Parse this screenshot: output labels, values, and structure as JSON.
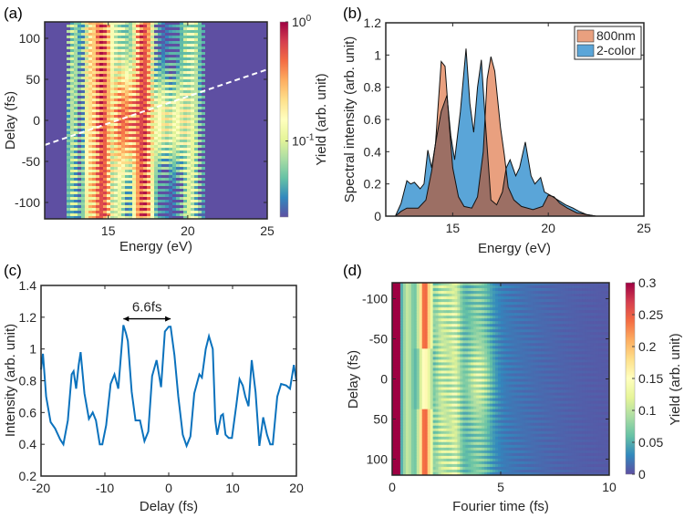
{
  "chart_data": [
    {
      "panel": "(a)",
      "type": "heatmap",
      "xlabel": "Energy (eV)",
      "ylabel": "Delay (fs)",
      "xlim": [
        11,
        25
      ],
      "ylim": [
        -120,
        120
      ],
      "xticks": [
        15,
        20,
        25
      ],
      "yticks": [
        -100,
        -50,
        0,
        50,
        100
      ],
      "colorbar": {
        "label": "Yield (arb. unit)",
        "scale": "log",
        "range": [
          0.023,
          1
        ],
        "ticks": [
          {
            "value": 1,
            "base": "10",
            "exp": "0"
          },
          {
            "value": 0.1,
            "base": "10",
            "exp": "-1"
          }
        ]
      },
      "model": {
        "energy_cutoff": [
          12.3,
          21.2
        ],
        "bands_800nm": [
          [
            12.8,
            0.35,
            0.08
          ],
          [
            13.8,
            0.3,
            0.25
          ],
          [
            14.6,
            0.45,
            0.9
          ],
          [
            15.7,
            0.5,
            0.12
          ],
          [
            17.2,
            0.45,
            0.9
          ],
          [
            20.2,
            0.5,
            0.12
          ]
        ],
        "bands_overlap": [
          [
            15.8,
            0.45,
            0.55
          ],
          [
            16.5,
            0.45,
            0.5
          ],
          [
            18.5,
            0.8,
            0.2
          ],
          [
            19.6,
            0.5,
            0.12
          ]
        ],
        "overlap_width_fs": 45,
        "fringe_period_fs": 6.6
      },
      "dashed_line": {
        "x": [
          11,
          25
        ],
        "y": [
          -30,
          62
        ],
        "color": "#ffffff"
      }
    },
    {
      "panel": "(b)",
      "type": "area",
      "xlabel": "Energy (eV)",
      "ylabel": "Spectral intensity (arb. unit)",
      "xlim": [
        11.5,
        25
      ],
      "ylim": [
        0,
        1.2
      ],
      "xticks": [
        15,
        20,
        25
      ],
      "yticks": [
        0,
        0.2,
        0.4,
        0.6,
        0.8,
        1,
        1.2
      ],
      "legend": "top-right",
      "series": [
        {
          "name": "800nm",
          "color": "#e9a07f",
          "x": [
            11.5,
            12,
            12.3,
            12.6,
            13.2,
            13.6,
            13.9,
            14.1,
            14.4,
            14.6,
            14.8,
            15.0,
            15.3,
            15.6,
            16.0,
            16.3,
            16.6,
            16.8,
            17.0,
            17.2,
            17.5,
            17.7,
            17.9,
            18.2,
            18.6,
            19.2,
            19.7,
            20.0,
            20.3,
            20.6,
            21.0,
            21.5,
            22,
            22.5,
            25
          ],
          "y": [
            0,
            0,
            0.03,
            0.05,
            0.05,
            0.1,
            0.28,
            0.45,
            0.96,
            0.93,
            0.6,
            0.3,
            0.12,
            0.06,
            0.05,
            0.12,
            0.4,
            0.85,
            0.99,
            0.9,
            0.55,
            0.38,
            0.18,
            0.1,
            0.06,
            0.04,
            0.06,
            0.13,
            0.12,
            0.08,
            0.05,
            0.02,
            0.01,
            0,
            0
          ]
        },
        {
          "name": "2-color",
          "color": "#5aa5d8",
          "x": [
            11.5,
            12,
            12.3,
            12.6,
            12.8,
            13.0,
            13.3,
            13.5,
            13.7,
            13.9,
            14.1,
            14.4,
            14.7,
            14.9,
            15.1,
            15.4,
            15.7,
            15.9,
            16.1,
            16.3,
            16.5,
            16.7,
            17.0,
            17.3,
            17.6,
            17.8,
            18.0,
            18.3,
            18.5,
            18.8,
            19.1,
            19.3,
            19.6,
            19.8,
            20.1,
            20.5,
            20.9,
            21.3,
            21.6,
            22,
            22.5,
            25
          ],
          "y": [
            0,
            0,
            0.08,
            0.22,
            0.2,
            0.21,
            0.17,
            0.2,
            0.41,
            0.3,
            0.45,
            0.65,
            0.75,
            0.5,
            0.35,
            0.65,
            1.04,
            0.7,
            0.52,
            0.8,
            0.97,
            0.6,
            0.1,
            0.07,
            0.15,
            0.3,
            0.35,
            0.25,
            0.3,
            0.46,
            0.25,
            0.2,
            0.24,
            0.15,
            0.13,
            0.1,
            0.07,
            0.05,
            0.03,
            0.01,
            0,
            0
          ]
        }
      ],
      "overlap_color": "#9c6f64"
    },
    {
      "panel": "(c)",
      "type": "line",
      "xlabel": "Delay (fs)",
      "ylabel": "Intensity (arb. unit)",
      "xlim": [
        -20,
        20
      ],
      "ylim": [
        0.2,
        1.4
      ],
      "xticks": [
        -20,
        -10,
        0,
        10,
        20
      ],
      "yticks": [
        0.2,
        0.4,
        0.6,
        0.8,
        1,
        1.2,
        1.4
      ],
      "color": "#0b72bd",
      "x": [
        -20,
        -19.7,
        -19.2,
        -18.5,
        -17.8,
        -17,
        -16.5,
        -15.8,
        -15.2,
        -14.9,
        -14.5,
        -14.1,
        -13.8,
        -13.2,
        -12.5,
        -11.9,
        -11.4,
        -10.8,
        -10.4,
        -9.8,
        -9.1,
        -8.5,
        -7.9,
        -7.1,
        -6.7,
        -6.4,
        -5.8,
        -5.2,
        -4.5,
        -3.8,
        -3.2,
        -2.6,
        -1.9,
        -1.2,
        -0.6,
        0,
        0.3,
        0.9,
        1.5,
        2.2,
        2.8,
        3.4,
        4.0,
        4.8,
        5.2,
        5.8,
        6.3,
        6.9,
        7.3,
        7.6,
        8.2,
        8.5,
        8.9,
        9.4,
        9.9,
        10.6,
        11.1,
        11.6,
        12,
        12.5,
        13.0,
        13.6,
        14.2,
        14.8,
        15.4,
        15.9,
        16.3,
        17.0,
        17.6,
        18.4,
        19.0,
        19.6,
        20
      ],
      "y": [
        0.87,
        0.97,
        0.7,
        0.54,
        0.5,
        0.43,
        0.4,
        0.55,
        0.84,
        0.86,
        0.75,
        0.9,
        0.98,
        0.72,
        0.56,
        0.6,
        0.55,
        0.4,
        0.4,
        0.52,
        0.78,
        0.84,
        0.75,
        1.15,
        1.1,
        1.05,
        0.73,
        0.55,
        0.55,
        0.42,
        0.48,
        0.83,
        0.93,
        0.76,
        1.11,
        1.14,
        1.14,
        0.96,
        0.7,
        0.46,
        0.39,
        0.45,
        0.72,
        0.84,
        0.82,
        1.0,
        1.08,
        1.0,
        0.55,
        0.46,
        0.58,
        0.59,
        0.46,
        0.44,
        0.44,
        0.65,
        0.81,
        0.77,
        0.7,
        0.64,
        0.93,
        0.73,
        0.39,
        0.57,
        0.46,
        0.4,
        0.4,
        0.7,
        0.78,
        0.77,
        0.75,
        0.9,
        0.8
      ],
      "annotation": {
        "text": "6.6fs",
        "x_from": -7.1,
        "x_to": 0.3,
        "y": 1.19
      }
    },
    {
      "panel": "(d)",
      "type": "heatmap",
      "xlabel": "Fourier time (fs)",
      "ylabel": "Delay (fs)",
      "xlim": [
        0,
        10
      ],
      "ylim": [
        -120,
        120
      ],
      "y_reversed": true,
      "xticks": [
        0,
        5,
        10
      ],
      "yticks": [
        -100,
        -50,
        0,
        50,
        100
      ],
      "colorbar": {
        "label": "Yield (arb. unit)",
        "scale": "linear",
        "range": [
          0,
          0.3
        ],
        "ticks": [
          "0",
          "0.05",
          "0.1",
          "0.15",
          "0.2",
          "0.25",
          "0.3"
        ]
      },
      "model": {
        "dc_width_fs": 0.35,
        "bands": [
          [
            0.7,
            0.3,
            0.09
          ],
          [
            2.3,
            0.4,
            0.09
          ],
          [
            2.9,
            0.3,
            0.08
          ],
          [
            4.0,
            0.6,
            0.05
          ]
        ],
        "band_1p5": {
          "center": 1.5,
          "width": 0.3,
          "outer": 0.22,
          "inner": 0.13
        },
        "fringe_period_fs": 6.6
      }
    }
  ],
  "labels": {
    "a": "(a)",
    "b": "(b)",
    "c": "(c)",
    "d": "(d)"
  }
}
